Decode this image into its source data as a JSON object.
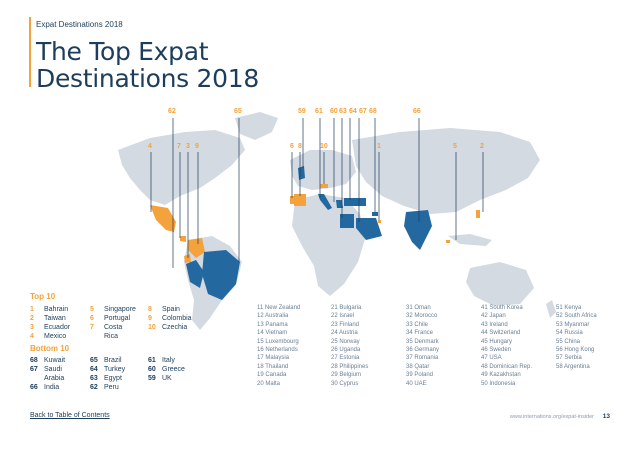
{
  "section_label": "Expat Destinations 2018",
  "title_line1": "The Top Expat",
  "title_line2": "Destinations 2018",
  "map_markers": {
    "top_row": [
      "62",
      "65",
      "59",
      "61",
      "60",
      "63",
      "64",
      "67",
      "68",
      "66"
    ],
    "mid_row": [
      "4",
      "7",
      "3",
      "9",
      "6",
      "8",
      "10",
      "1",
      "5",
      "2"
    ]
  },
  "top10_heading": "Top 10",
  "top10": [
    {
      "rank": "1",
      "name": "Bahrain"
    },
    {
      "rank": "2",
      "name": "Taiwan"
    },
    {
      "rank": "3",
      "name": "Ecuador"
    },
    {
      "rank": "4",
      "name": "Mexico"
    },
    {
      "rank": "5",
      "name": "Singapore"
    },
    {
      "rank": "6",
      "name": "Portugal"
    },
    {
      "rank": "7",
      "name": "Costa"
    },
    {
      "rank": "",
      "name": "Rica"
    },
    {
      "rank": "8",
      "name": "Spain"
    },
    {
      "rank": "9",
      "name": "Colombia"
    },
    {
      "rank": "10",
      "name": "Czechia"
    }
  ],
  "bottom10_heading": "Bottom 10",
  "bottom10": [
    {
      "rank": "68",
      "name": "Kuwait"
    },
    {
      "rank": "67",
      "name": "Saudi"
    },
    {
      "rank": "",
      "name": "Arabia"
    },
    {
      "rank": "66",
      "name": "India"
    },
    {
      "rank": "65",
      "name": "Brazil"
    },
    {
      "rank": "64",
      "name": "Turkey"
    },
    {
      "rank": "63",
      "name": "Egypt"
    },
    {
      "rank": "62",
      "name": "Peru"
    },
    {
      "rank": "61",
      "name": "Italy"
    },
    {
      "rank": "60",
      "name": "Greece"
    },
    {
      "rank": "59",
      "name": "UK"
    }
  ],
  "ranking_columns": [
    [
      "11 New Zealand",
      "12 Australia",
      "13 Panama",
      "14 Vietnam",
      "15 Luxembourg",
      "16 Netherlands",
      "17 Malaysia",
      "18 Thailand",
      "19 Canada",
      "20 Malta"
    ],
    [
      "21 Bulgaria",
      "22 Israel",
      "23 Finland",
      "24 Austria",
      "25 Norway",
      "26 Uganda",
      "27 Estonia",
      "28 Philippines",
      "29 Belgium",
      "30 Cyprus"
    ],
    [
      "31 Oman",
      "32 Morocco",
      "33 Chile",
      "34 France",
      "35 Denmark",
      "36 Germany",
      "37 Romania",
      "38 Qatar",
      "39 Poland",
      "40 UAE"
    ],
    [
      "41 South Korea",
      "42 Japan",
      "43 Ireland",
      "44 Switzerland",
      "45 Hungary",
      "46 Sweden",
      "47 USA",
      "48 Dominican Rep.",
      "49 Kazakhstan",
      "50 Indonesia"
    ],
    [
      "51 Kenya",
      "52 South Africa",
      "53 Myanmar",
      "54 Russia",
      "55 China",
      "56 Hong Kong",
      "57 Serbia",
      "58 Argentina"
    ]
  ],
  "footer_link": "Back to Table of Contents",
  "footer_url": "www.internations.org/expat-insider",
  "page_number": "13",
  "colors": {
    "navy": "#1d3d5c",
    "orange": "#f4a23c",
    "blue": "#2468a0",
    "land": "#d3dae2"
  }
}
